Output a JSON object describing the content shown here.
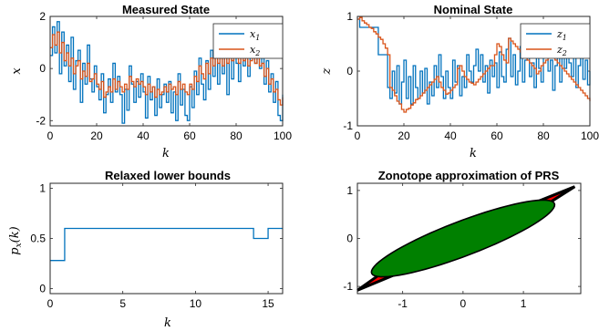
{
  "chart_data": [
    {
      "type": "line",
      "title": "Measured State",
      "xlabel": "k",
      "ylabel": "x",
      "xlim": [
        0,
        100
      ],
      "ylim": [
        -2.2,
        2
      ],
      "xticks": [
        0,
        20,
        40,
        60,
        80,
        100
      ],
      "yticks": [
        -2,
        0,
        2
      ],
      "xtick_labels": [
        "0",
        "20",
        "40",
        "60",
        "80",
        "100"
      ],
      "ytick_labels": [
        "-2",
        "0",
        "2"
      ],
      "legend": "top-right",
      "grid": false,
      "series": [
        {
          "name": "x1",
          "label_main": "x",
          "label_sub": "1",
          "color": "#0072BD",
          "values": [
            0.5,
            1.6,
            0.6,
            1.8,
            -0.2,
            1.4,
            0.1,
            0.9,
            -0.5,
            1.2,
            -0.8,
            0.3,
            0.7,
            -1.3,
            0.2,
            -0.6,
            0.9,
            -0.4,
            -0.9,
            0.1,
            -0.7,
            -1.2,
            -0.2,
            -1.7,
            -1.0,
            -0.4,
            -1.3,
            0.2,
            -0.9,
            -0.3,
            -1.0,
            -2.1,
            -0.8,
            -1.6,
            0.1,
            -0.6,
            -1.3,
            -0.5,
            -1.1,
            -0.2,
            -0.9,
            -1.9,
            -0.3,
            -1.2,
            -0.7,
            -1.8,
            -0.4,
            -1.5,
            -1.0,
            -0.6,
            -1.3,
            -0.5,
            -1.7,
            -0.9,
            -2.0,
            -0.2,
            -1.4,
            -0.8,
            -1.8,
            -2.0,
            -0.7,
            -1.5,
            -0.1,
            -1.0,
            0.4,
            -0.6,
            -1.2,
            0.3,
            -0.8,
            0.7,
            -0.3,
            1.0,
            -0.6,
            0.5,
            -0.2,
            0.9,
            -1.0,
            0.6,
            -0.4,
            1.2,
            0.2,
            -0.5,
            0.8,
            0.1,
            0.6,
            -0.3,
            0.5,
            0.9,
            0.2,
            0.7,
            0.0,
            0.4,
            -0.6,
            0.3,
            -0.9,
            -0.2,
            -1.3,
            -0.5,
            -1.8,
            -2.0,
            -1.0
          ]
        },
        {
          "name": "x2",
          "label_main": "x",
          "label_sub": "2",
          "color": "#D95319",
          "values": [
            0.8,
            1.3,
            0.9,
            1.4,
            0.6,
            1.0,
            0.3,
            0.6,
            0.1,
            0.4,
            -0.2,
            0.1,
            0.3,
            -0.4,
            -0.1,
            -0.3,
            0.2,
            -0.5,
            -0.4,
            -0.2,
            -0.6,
            -0.8,
            -0.5,
            -1.1,
            -0.9,
            -0.7,
            -0.9,
            -0.4,
            -0.8,
            -0.5,
            -0.7,
            -0.9,
            -0.6,
            -0.8,
            -0.3,
            -0.5,
            -0.7,
            -0.4,
            -0.6,
            -0.5,
            -0.7,
            -1.0,
            -0.6,
            -0.9,
            -0.7,
            -1.1,
            -0.8,
            -1.0,
            -0.9,
            -0.7,
            -0.9,
            -0.6,
            -0.8,
            -0.7,
            -1.0,
            -0.5,
            -0.8,
            -0.6,
            -0.9,
            -1.0,
            -0.6,
            -0.8,
            -0.3,
            -0.5,
            0.1,
            -0.2,
            -0.4,
            0.2,
            -0.2,
            0.4,
            0.1,
            0.5,
            0.2,
            0.4,
            0.1,
            0.6,
            0.2,
            0.5,
            0.3,
            0.6,
            0.4,
            0.2,
            0.5,
            0.3,
            0.4,
            0.1,
            0.3,
            0.5,
            0.2,
            0.4,
            0.1,
            0.2,
            -0.3,
            0.0,
            -0.6,
            -0.4,
            -0.9,
            -0.8,
            -1.2,
            -1.4,
            -1.1
          ]
        }
      ]
    },
    {
      "type": "line",
      "title": "Nominal State",
      "xlabel": "k",
      "ylabel": "z",
      "xlim": [
        0,
        100
      ],
      "ylim": [
        -1,
        1
      ],
      "xticks": [
        0,
        20,
        40,
        60,
        80,
        100
      ],
      "yticks": [
        -1,
        0,
        1
      ],
      "xtick_labels": [
        "0",
        "20",
        "40",
        "60",
        "80",
        "100"
      ],
      "ytick_labels": [
        "-1",
        "0",
        "1"
      ],
      "legend": "top-right",
      "grid": false,
      "series": [
        {
          "name": "z1",
          "label_main": "z",
          "label_sub": "1",
          "color": "#0072BD",
          "values": [
            0.95,
            0.8,
            0.8,
            0.8,
            0.8,
            0.8,
            0.8,
            0.8,
            0.8,
            0.3,
            0.3,
            0.3,
            0.3,
            -0.3,
            -0.5,
            0.0,
            -0.4,
            0.1,
            -0.6,
            -0.2,
            0.2,
            -0.5,
            -0.1,
            -0.6,
            0.1,
            -0.3,
            -0.5,
            0.0,
            -0.4,
            0.05,
            -0.6,
            -0.2,
            -0.45,
            0.1,
            -0.3,
            0.3,
            -0.1,
            -0.5,
            0.0,
            -0.3,
            -0.5,
            0.2,
            -0.2,
            0.1,
            -0.45,
            -0.1,
            -0.3,
            0.3,
            0.0,
            -0.2,
            0.1,
            0.4,
            0.0,
            0.3,
            -0.2,
            0.1,
            -0.4,
            0.2,
            -0.1,
            0.15,
            -0.3,
            0.35,
            -0.1,
            -0.2,
            0.4,
            0.6,
            -0.1,
            0.3,
            -0.25,
            0.0,
            0.45,
            -0.2,
            0.2,
            0.55,
            -0.1,
            0.15,
            -0.3,
            0.25,
            0.05,
            -0.2,
            0.3,
            0.5,
            0.0,
            0.2,
            -0.35,
            0.1,
            0.4,
            -0.2,
            0.25,
            0.05,
            0.5,
            0.15,
            -0.1,
            0.3,
            -0.3,
            0.1,
            0.45,
            -0.15,
            0.2,
            -0.25,
            0.0
          ]
        },
        {
          "name": "z2",
          "label_main": "z",
          "label_sub": "2",
          "color": "#D95319",
          "values": [
            0.95,
            0.98,
            0.92,
            0.88,
            0.85,
            0.8,
            0.78,
            0.72,
            0.68,
            0.62,
            0.58,
            0.5,
            0.42,
            0.3,
            -0.3,
            -0.35,
            -0.45,
            -0.55,
            -0.6,
            -0.7,
            -0.75,
            -0.7,
            -0.68,
            -0.62,
            -0.58,
            -0.52,
            -0.5,
            -0.45,
            -0.4,
            -0.35,
            -0.3,
            -0.25,
            -0.2,
            -0.15,
            -0.1,
            -0.2,
            -0.3,
            -0.35,
            -0.42,
            -0.4,
            -0.35,
            -0.3,
            -0.25,
            0.05,
            0.1,
            0.0,
            -0.1,
            -0.15,
            -0.2,
            -0.22,
            -0.25,
            -0.2,
            -0.15,
            -0.1,
            -0.05,
            0.0,
            0.05,
            0.1,
            0.1,
            0.3,
            0.5,
            0.45,
            0.3,
            0.2,
            0.15,
            0.6,
            0.55,
            0.5,
            0.45,
            0.4,
            0.35,
            0.3,
            0.25,
            0.2,
            0.15,
            0.1,
            0.05,
            -0.05,
            0.0,
            0.1,
            0.15,
            0.2,
            0.25,
            0.3,
            0.25,
            0.2,
            0.15,
            0.1,
            0.05,
            0.0,
            -0.05,
            -0.1,
            -0.15,
            -0.2,
            -0.25,
            -0.3,
            -0.35,
            -0.4,
            -0.45,
            -0.5,
            -0.55
          ]
        }
      ]
    },
    {
      "type": "line",
      "title": "Relaxed lower bounds",
      "xlabel": "k",
      "ylabel_main": "p",
      "ylabel_sub": "x",
      "ylabel_tail": "(k)",
      "xlim": [
        0,
        16
      ],
      "ylim": [
        -0.05,
        1.05
      ],
      "xticks": [
        0,
        5,
        10,
        15
      ],
      "yticks": [
        0,
        0.5,
        1
      ],
      "xtick_labels": [
        "0",
        "5",
        "10",
        "15"
      ],
      "ytick_labels": [
        "0",
        "0.5",
        "1"
      ],
      "step": true,
      "grid": false,
      "series": [
        {
          "color": "#0072BD",
          "x": [
            0,
            1,
            2,
            3,
            4,
            5,
            6,
            7,
            8,
            9,
            10,
            11,
            12,
            13,
            14,
            15,
            16
          ],
          "values": [
            0.28,
            0.6,
            0.6,
            0.6,
            0.6,
            0.6,
            0.6,
            0.6,
            0.6,
            0.6,
            0.6,
            0.6,
            0.6,
            0.6,
            0.5,
            0.6,
            0.6
          ]
        }
      ]
    },
    {
      "type": "area",
      "title": "Zonotope approximation of PRS",
      "xlim": [
        -1.75,
        1.95
      ],
      "ylim": [
        -1.15,
        1.15
      ],
      "xticks": [
        -1,
        0,
        1
      ],
      "yticks": [
        -1,
        0,
        1
      ],
      "xtick_labels": [
        "-1",
        "0",
        "1"
      ],
      "ytick_labels": [
        "-1",
        "0",
        "1"
      ],
      "grid": false,
      "zonotope": {
        "fill": "#FF0000",
        "outline": "#000000",
        "vertices": [
          [
            -1.75,
            -1.08
          ],
          [
            -0.85,
            -0.28
          ],
          [
            1.85,
            1.08
          ],
          [
            0.85,
            0.28
          ]
        ]
      },
      "ellipse": {
        "fill": "#008000",
        "outline": "#000000",
        "center": [
          0.0,
          0.0
        ],
        "semi_major": 1.68,
        "semi_minor": 0.35,
        "angle_deg": 26
      }
    }
  ]
}
